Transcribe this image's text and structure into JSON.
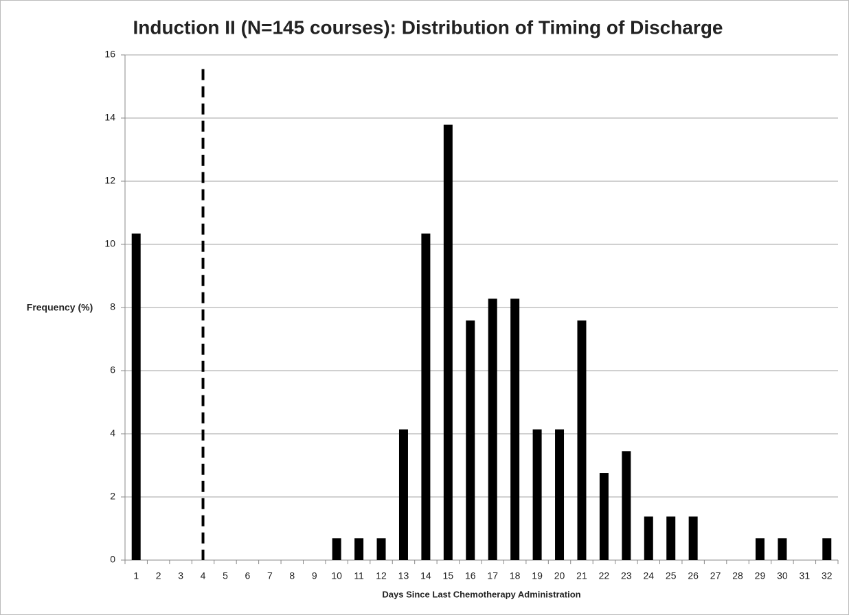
{
  "chart_data": {
    "type": "bar",
    "title": "Induction II (N=145 courses): Distribution of Timing of Discharge",
    "x_label": "Days Since Last Chemotherapy Administration",
    "y_label": "Frequency (%)",
    "categories": [
      1,
      2,
      3,
      4,
      5,
      6,
      7,
      8,
      9,
      10,
      11,
      12,
      13,
      14,
      15,
      16,
      17,
      18,
      19,
      20,
      21,
      22,
      23,
      24,
      25,
      26,
      27,
      28,
      29,
      30,
      31,
      32
    ],
    "values": [
      10.34,
      0,
      0,
      0,
      0,
      0,
      0,
      0,
      0,
      0.69,
      0.69,
      0.69,
      4.14,
      10.34,
      13.79,
      7.59,
      8.28,
      8.28,
      4.14,
      4.14,
      7.59,
      2.76,
      3.45,
      1.38,
      1.38,
      1.38,
      0,
      0,
      0.69,
      0.69,
      0,
      0.69
    ],
    "color": "#000000",
    "ylim": [
      0,
      16
    ],
    "yticks": [
      0,
      2,
      4,
      6,
      8,
      10,
      12,
      14,
      16
    ],
    "grid": true,
    "reference_line": {
      "x": 4,
      "ymax": 15.55,
      "style": "dashed"
    }
  }
}
